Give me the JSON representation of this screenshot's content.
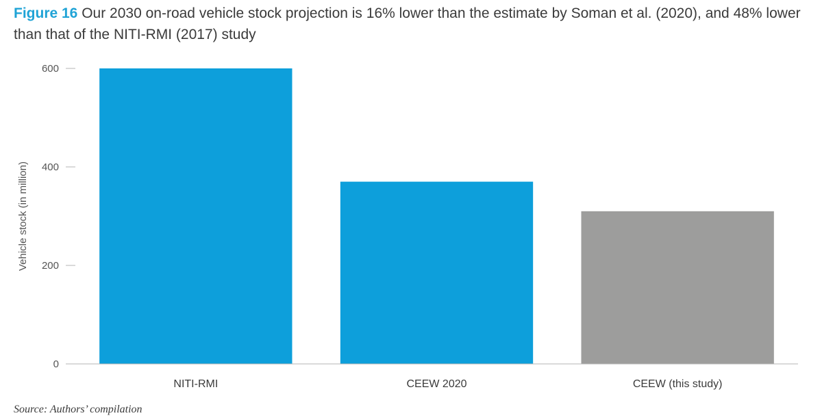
{
  "caption": {
    "label": "Figure 16",
    "text": " Our 2030 on-road vehicle stock projection is 16% lower than the estimate by Soman et al. (2020), and 48% lower than that of the NITI-RMI (2017) study"
  },
  "source": "Source: Authors’ compilation",
  "colors": {
    "accent": "#1fa3d6",
    "bar_blue": "#0d9fdb",
    "bar_grey": "#9d9d9c"
  },
  "chart_data": {
    "type": "bar",
    "categories": [
      "NITI-RMI",
      "CEEW 2020",
      "CEEW (this study)"
    ],
    "values": [
      600,
      370,
      310
    ],
    "bar_colors": [
      "#0d9fdb",
      "#0d9fdb",
      "#9d9d9c"
    ],
    "ylabel": "Vehicle stock (in million)",
    "ylim": [
      0,
      600
    ],
    "yticks": [
      0,
      200,
      400,
      600
    ],
    "grid": false,
    "legend": "none"
  }
}
